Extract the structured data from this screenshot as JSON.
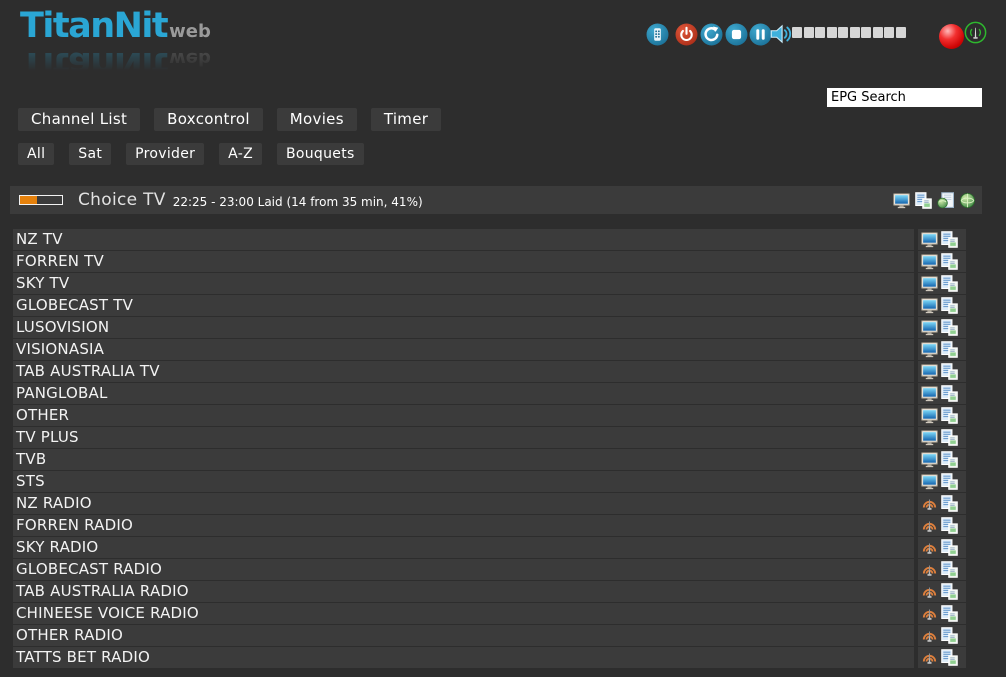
{
  "app": {
    "title": "TitanNit",
    "title_suffix": "web"
  },
  "topbar": {
    "controls": [
      {
        "name": "remote-icon"
      },
      {
        "name": "power-icon"
      },
      {
        "name": "refresh-icon"
      },
      {
        "name": "stop-icon"
      },
      {
        "name": "pause-icon"
      },
      {
        "name": "speaker-icon"
      }
    ],
    "volume": {
      "segments": 10,
      "level": 0
    },
    "status": [
      {
        "name": "record-indicator",
        "color": "#e01515"
      },
      {
        "name": "signal-icon",
        "color": "#2eb82e"
      }
    ]
  },
  "search": {
    "value": "EPG Search"
  },
  "nav": {
    "primary": [
      {
        "label": "Channel List"
      },
      {
        "label": "Boxcontrol"
      },
      {
        "label": "Movies"
      },
      {
        "label": "Timer"
      }
    ],
    "filters": [
      {
        "label": "All"
      },
      {
        "label": "Sat"
      },
      {
        "label": "Provider"
      },
      {
        "label": "A-Z"
      },
      {
        "label": "Bouquets"
      }
    ]
  },
  "now_playing": {
    "channel": "Choice TV",
    "epg_info": "22:25 - 23:00 Laid (14 from 35 min, 41%)",
    "progress_percent": 41,
    "actions": [
      {
        "name": "monitor-icon"
      },
      {
        "name": "epg-list-icon"
      },
      {
        "name": "globe-page-icon"
      },
      {
        "name": "globe-icon"
      }
    ]
  },
  "channel_list": [
    {
      "name": "NZ TV",
      "type": "tv"
    },
    {
      "name": "FORREN TV",
      "type": "tv"
    },
    {
      "name": "SKY TV",
      "type": "tv"
    },
    {
      "name": "GLOBECAST TV",
      "type": "tv"
    },
    {
      "name": "LUSOVISION",
      "type": "tv"
    },
    {
      "name": "VISIONASIA",
      "type": "tv"
    },
    {
      "name": "TAB AUSTRALIA TV",
      "type": "tv"
    },
    {
      "name": "PANGLOBAL",
      "type": "tv"
    },
    {
      "name": "OTHER",
      "type": "tv"
    },
    {
      "name": "TV PLUS",
      "type": "tv"
    },
    {
      "name": "TVB",
      "type": "tv"
    },
    {
      "name": "STS",
      "type": "tv"
    },
    {
      "name": "NZ RADIO",
      "type": "radio"
    },
    {
      "name": "FORREN RADIO",
      "type": "radio"
    },
    {
      "name": "SKY RADIO",
      "type": "radio"
    },
    {
      "name": "GLOBECAST RADIO",
      "type": "radio"
    },
    {
      "name": "TAB AUSTRALIA RADIO",
      "type": "radio"
    },
    {
      "name": "CHINEESE VOICE RADIO",
      "type": "radio"
    },
    {
      "name": "OTHER RADIO",
      "type": "radio"
    },
    {
      "name": "TATTS BET RADIO",
      "type": "radio"
    }
  ],
  "colors": {
    "background": "#2d2d2d",
    "panel": "#3b3b3b",
    "logo_cyan": "#2aa6d4",
    "accent_blue": "#1d7fa6",
    "accent_red": "#c63d1f",
    "progress_orange": "#e5810c",
    "record_red": "#e01515",
    "signal_green": "#2eb82e"
  }
}
